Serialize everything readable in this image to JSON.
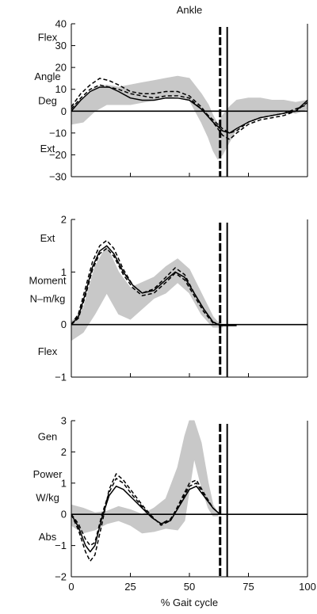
{
  "chart_data": [
    {
      "type": "line",
      "title": "Ankle",
      "ylim": [
        -30,
        40
      ],
      "y_ticks": [
        "40",
        "30",
        "20",
        "10",
        "0",
        "−10",
        "−20",
        "−30"
      ],
      "y_tick_values": [
        40,
        30,
        20,
        10,
        0,
        -10,
        -20,
        -30
      ],
      "side_labels": [
        "Flex",
        "Angle",
        "Deg",
        "Ext"
      ],
      "side_label_values": [
        34,
        16,
        5,
        -17
      ],
      "xlim": [
        0,
        100
      ],
      "x_ticks": [],
      "vertical_markers": [
        {
          "x": 63,
          "style": "dashed-bold"
        },
        {
          "x": 66,
          "style": "solid"
        }
      ],
      "normal_band": {
        "x": [
          0,
          5,
          10,
          15,
          20,
          25,
          30,
          35,
          40,
          45,
          50,
          55,
          58,
          60,
          62,
          64,
          67,
          70,
          75,
          80,
          85,
          90,
          95,
          100
        ],
        "low": [
          -6,
          -5,
          0,
          3,
          3,
          3,
          4,
          5,
          6,
          7,
          5,
          -5,
          -12,
          -18,
          -22,
          -20,
          -14,
          -8,
          -5,
          -3,
          -2,
          0,
          -1,
          1
        ],
        "high": [
          2,
          6,
          11,
          12,
          11,
          12,
          13,
          14,
          15,
          16,
          15,
          8,
          3,
          -2,
          -6,
          -2,
          2,
          5,
          6,
          6,
          5,
          5,
          4,
          5
        ]
      },
      "series": [
        {
          "style": "solid",
          "x": [
            0,
            4,
            8,
            12,
            16,
            20,
            25,
            30,
            35,
            40,
            45,
            50,
            55,
            60,
            64,
            67,
            70,
            75,
            80,
            85,
            90,
            95,
            100
          ],
          "y": [
            0,
            5,
            9,
            11,
            11,
            9,
            6,
            5,
            5,
            6,
            6,
            5,
            1,
            -5,
            -9,
            -10,
            -8,
            -5,
            -3,
            -2,
            -1,
            0,
            5
          ]
        },
        {
          "style": "dashed",
          "x": [
            0,
            4,
            8,
            12,
            16,
            20,
            25,
            30,
            35,
            40,
            45,
            50,
            55,
            60,
            64,
            67,
            70,
            75,
            80,
            85,
            90,
            95,
            100
          ],
          "y": [
            2,
            8,
            12,
            15,
            14,
            12,
            9,
            8,
            8,
            9,
            9,
            7,
            2,
            -5,
            -11,
            -13,
            -10,
            -6,
            -4,
            -3,
            -2,
            0,
            4
          ]
        },
        {
          "style": "dashed",
          "x": [
            0,
            4,
            8,
            12,
            16,
            20,
            25,
            30,
            35,
            40,
            45,
            50,
            55,
            60,
            64,
            67,
            70,
            75,
            80,
            85,
            90,
            95,
            100
          ],
          "y": [
            1,
            6,
            10,
            12,
            11,
            10,
            8,
            7,
            6,
            7,
            7,
            6,
            1,
            -4,
            -8,
            -10,
            -9,
            -5,
            -3,
            -2,
            -1,
            1,
            3
          ]
        }
      ]
    },
    {
      "type": "line",
      "title": "",
      "ylim": [
        -1,
        2
      ],
      "y_ticks": [
        "2",
        "1",
        "0",
        "−1"
      ],
      "y_tick_values": [
        2,
        1,
        0,
        -1
      ],
      "side_labels": [
        "Ext",
        "Moment",
        "N–m/kg",
        "Flex"
      ],
      "side_label_values": [
        1.65,
        0.85,
        0.5,
        -0.5
      ],
      "xlim": [
        0,
        100
      ],
      "x_ticks": [],
      "vertical_markers": [
        {
          "x": 63,
          "style": "dashed-bold"
        },
        {
          "x": 66,
          "style": "solid"
        }
      ],
      "normal_band": {
        "x": [
          0,
          5,
          10,
          15,
          20,
          25,
          30,
          35,
          40,
          45,
          50,
          55,
          60,
          62,
          64
        ],
        "low": [
          -0.3,
          -0.15,
          0.2,
          0.6,
          0.2,
          0.1,
          0.3,
          0.5,
          0.6,
          0.8,
          0.6,
          0.2,
          -0.05,
          -0.05,
          -0.05
        ],
        "high": [
          0.05,
          0.3,
          1.1,
          1.5,
          1.0,
          0.7,
          0.8,
          0.9,
          1.1,
          1.25,
          1.05,
          0.6,
          0.15,
          0.05,
          0.0
        ]
      },
      "series": [
        {
          "style": "solid",
          "x": [
            0,
            3,
            6,
            9,
            12,
            15,
            18,
            22,
            26,
            30,
            35,
            40,
            44,
            48,
            52,
            56,
            60,
            63,
            66,
            70
          ],
          "y": [
            0.0,
            0.15,
            0.6,
            1.1,
            1.4,
            1.5,
            1.35,
            1.0,
            0.75,
            0.6,
            0.65,
            0.85,
            1.0,
            0.9,
            0.6,
            0.3,
            0.05,
            -0.02,
            -0.02,
            -0.02
          ]
        },
        {
          "style": "dashed",
          "x": [
            0,
            3,
            6,
            9,
            12,
            15,
            18,
            22,
            26,
            30,
            35,
            40,
            44,
            48,
            52,
            56,
            60,
            63
          ],
          "y": [
            0.0,
            0.2,
            0.7,
            1.2,
            1.5,
            1.6,
            1.45,
            1.05,
            0.75,
            0.6,
            0.68,
            0.9,
            1.08,
            0.95,
            0.6,
            0.3,
            0.05,
            0.0
          ]
        },
        {
          "style": "dashed",
          "x": [
            0,
            3,
            6,
            9,
            12,
            15,
            18,
            22,
            26,
            30,
            35,
            40,
            44,
            48,
            52,
            56,
            60,
            63
          ],
          "y": [
            0.0,
            0.12,
            0.55,
            1.05,
            1.35,
            1.45,
            1.3,
            0.95,
            0.7,
            0.55,
            0.6,
            0.8,
            0.98,
            0.85,
            0.55,
            0.25,
            0.03,
            0.0
          ]
        }
      ]
    },
    {
      "type": "line",
      "title": "",
      "ylim": [
        -2,
        3
      ],
      "y_ticks": [
        "3",
        "2",
        "1",
        "0",
        "−1",
        "−2"
      ],
      "y_tick_values": [
        3,
        2,
        1,
        0,
        -1,
        -2
      ],
      "side_labels": [
        "Gen",
        "Power",
        "W/kg",
        "Abs"
      ],
      "side_label_values": [
        2.5,
        1.3,
        0.55,
        -0.7
      ],
      "xlim": [
        0,
        100
      ],
      "x_ticks": [
        "0",
        "25",
        "50",
        "75",
        "100"
      ],
      "x_tick_values": [
        0,
        25,
        50,
        75,
        100
      ],
      "xlabel": "% Gait cycle",
      "vertical_markers": [
        {
          "x": 63,
          "style": "dashed-bold"
        },
        {
          "x": 66,
          "style": "solid"
        }
      ],
      "normal_band": {
        "x": [
          0,
          5,
          10,
          15,
          20,
          25,
          30,
          35,
          40,
          45,
          48,
          50,
          52,
          55,
          58,
          60,
          62
        ],
        "low": [
          -0.35,
          -0.6,
          -0.5,
          -0.3,
          -0.2,
          -0.35,
          -0.6,
          -0.55,
          -0.45,
          -0.5,
          -0.2,
          0.8,
          1.8,
          0.9,
          0.2,
          -0.05,
          -0.05
        ],
        "high": [
          0.3,
          0.2,
          0.05,
          0.1,
          0.25,
          0.15,
          0.0,
          0.2,
          0.5,
          1.5,
          2.5,
          3.0,
          3.0,
          2.3,
          1.0,
          0.3,
          0.05
        ]
      },
      "series": [
        {
          "style": "solid",
          "x": [
            0,
            3,
            6,
            8,
            10,
            13,
            16,
            19,
            22,
            26,
            30,
            34,
            38,
            42,
            46,
            50,
            53,
            56,
            60,
            63
          ],
          "y": [
            0.0,
            -0.4,
            -1.0,
            -1.2,
            -1.0,
            -0.1,
            0.6,
            0.9,
            0.8,
            0.5,
            0.2,
            -0.1,
            -0.3,
            -0.2,
            0.3,
            0.8,
            0.9,
            0.6,
            0.2,
            0.0
          ]
        },
        {
          "style": "dashed",
          "x": [
            0,
            3,
            6,
            8,
            10,
            13,
            16,
            19,
            22,
            26,
            30,
            34,
            38,
            42,
            46,
            50,
            53,
            56,
            60,
            63
          ],
          "y": [
            0.0,
            -0.5,
            -1.2,
            -1.5,
            -1.3,
            -0.3,
            0.8,
            1.3,
            1.1,
            0.7,
            0.3,
            -0.05,
            -0.35,
            -0.2,
            0.4,
            1.0,
            1.1,
            0.7,
            0.2,
            0.0
          ]
        },
        {
          "style": "dashed",
          "x": [
            0,
            3,
            6,
            8,
            10,
            13,
            16,
            19,
            22,
            26,
            30,
            34,
            38,
            42,
            46,
            50,
            53,
            56,
            60,
            63
          ],
          "y": [
            0.0,
            -0.3,
            -0.8,
            -1.0,
            -0.9,
            0.0,
            0.7,
            1.15,
            1.0,
            0.6,
            0.25,
            -0.1,
            -0.3,
            -0.15,
            0.35,
            0.9,
            1.0,
            0.65,
            0.2,
            0.0
          ]
        }
      ]
    }
  ]
}
